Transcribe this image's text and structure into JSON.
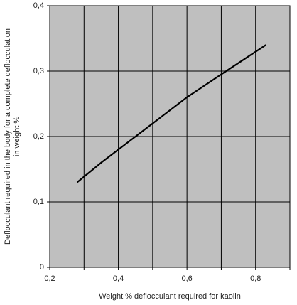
{
  "chart_data": {
    "type": "line",
    "xlabel": "Weight % deflocculant required for kaolin",
    "ylabel": [
      "Deflocculant required in the body for a complete deflocculation",
      "in weight %"
    ],
    "x": [
      0.28,
      0.35,
      0.4,
      0.5,
      0.6,
      0.7,
      0.83
    ],
    "series": [
      {
        "color": "#000000",
        "values": [
          0.13,
          0.16,
          0.18,
          0.22,
          0.26,
          0.295,
          0.34
        ]
      }
    ],
    "xlim": [
      0.2,
      0.9
    ],
    "ylim": [
      0,
      0.4
    ],
    "xticks": [
      {
        "value": 0.2,
        "label": "0,2"
      },
      {
        "value": 0.4,
        "label": "0,4"
      },
      {
        "value": 0.6,
        "label": "0,6"
      },
      {
        "value": 0.8,
        "label": "0,8"
      }
    ],
    "xminor": [
      0.3,
      0.5,
      0.7,
      0.9
    ],
    "yticks": [
      0,
      {
        "value": 0.1,
        "label": "0,1"
      },
      {
        "value": 0.2,
        "label": "0,2"
      },
      {
        "value": 0.3,
        "label": "0,3"
      },
      {
        "value": 0.4,
        "label": "0,4"
      }
    ],
    "grid": true,
    "background": "#bfbfbf"
  }
}
